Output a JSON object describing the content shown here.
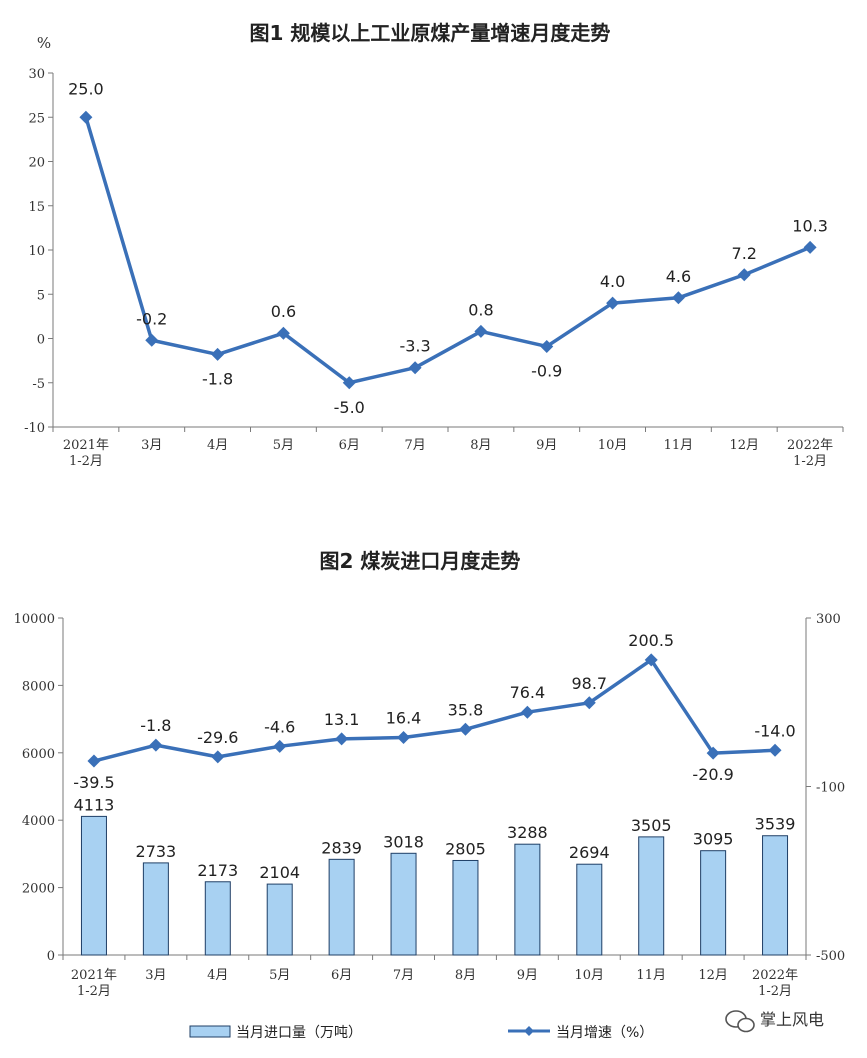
{
  "colors": {
    "line": "#3a70b8",
    "bar_fill": "#a8d1f2",
    "bar_stroke": "#1f3f66",
    "axis": "#7a7a7a"
  },
  "chart_data": [
    {
      "type": "line",
      "title": "图1  规模以上工业原煤产量增速月度走势",
      "ylabel": "%",
      "categories": [
        "2021年\n1-2月",
        "3月",
        "4月",
        "5月",
        "6月",
        "7月",
        "8月",
        "9月",
        "10月",
        "11月",
        "12月",
        "2022年\n1-2月"
      ],
      "ylim": [
        -10,
        30
      ],
      "yticks": [
        -10,
        -5,
        0,
        5,
        10,
        15,
        20,
        25,
        30
      ],
      "series": [
        {
          "values": [
            25.0,
            -0.2,
            -1.8,
            0.6,
            -5.0,
            -3.3,
            0.8,
            -0.9,
            4.0,
            4.6,
            7.2,
            10.3
          ]
        }
      ],
      "data_labels": [
        "25.0",
        "-0.2",
        "-1.8",
        "0.6",
        "-5.0",
        "-3.3",
        "0.8",
        "-0.9",
        "4.0",
        "4.6",
        "7.2",
        "10.3"
      ]
    },
    {
      "type": "bar",
      "title": "图2  煤炭进口月度走势",
      "categories": [
        "2021年\n1-2月",
        "3月",
        "4月",
        "5月",
        "6月",
        "7月",
        "8月",
        "9月",
        "10月",
        "11月",
        "12月",
        "2022年\n1-2月"
      ],
      "ylim": [
        0,
        10000
      ],
      "yticks": [
        0,
        2000,
        4000,
        6000,
        8000,
        10000
      ],
      "y2lim": [
        -500,
        300
      ],
      "y2ticks": [
        -500,
        -100,
        300
      ],
      "series": [
        {
          "name": "当月进口量（万吨）",
          "type": "bar",
          "axis": "left",
          "values": [
            4113,
            2733,
            2173,
            2104,
            2839,
            3018,
            2805,
            3288,
            2694,
            3505,
            3095,
            3539
          ],
          "labels": [
            "4113",
            "2733",
            "2173",
            "2104",
            "2839",
            "3018",
            "2805",
            "3288",
            "2694",
            "3505",
            "3095",
            "3539"
          ]
        },
        {
          "name": "当月增速（%）",
          "type": "line",
          "axis": "right",
          "values": [
            -39.5,
            -1.8,
            -29.6,
            -4.6,
            13.1,
            16.4,
            35.8,
            76.4,
            98.7,
            200.5,
            -20.9,
            -14.0
          ],
          "labels": [
            "-39.5",
            "-1.8",
            "-29.6",
            "-4.6",
            "13.1",
            "16.4",
            "35.8",
            "76.4",
            "98.7",
            "200.5",
            "-20.9",
            "-14.0"
          ]
        }
      ],
      "legend": {
        "position": "bottom"
      }
    }
  ],
  "watermark": {
    "icon": "wechat-icon",
    "text": "掌上风电"
  }
}
